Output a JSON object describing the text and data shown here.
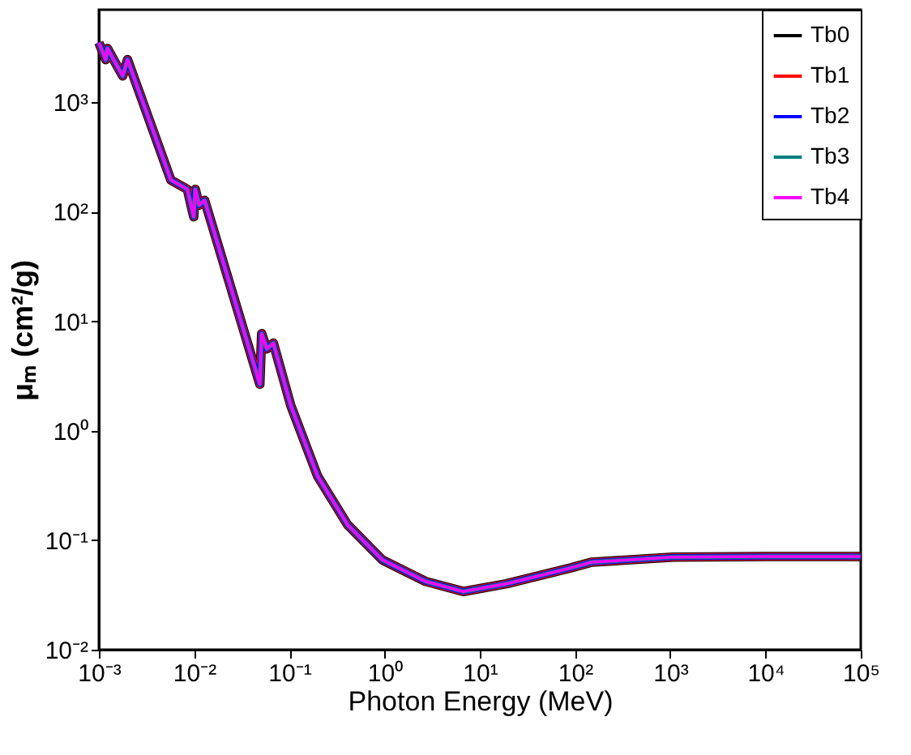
{
  "chart_data": {
    "type": "line",
    "xlabel": "Photon Energy (MeV)",
    "ylabel": "μₘ (cm²/g)",
    "log": "xy",
    "grid": false,
    "legend": "top right",
    "line_style": "solid",
    "marker": "none",
    "x": [
      0.001,
      0.00118,
      0.00123,
      0.00178,
      0.002,
      0.0057,
      0.0085,
      0.0099,
      0.0103,
      0.0113,
      0.0129,
      0.049,
      0.0512,
      0.058,
      0.068,
      0.1035,
      0.198,
      0.41,
      0.95,
      2.7,
      6.7,
      19,
      91,
      150,
      1070,
      10000,
      100000
    ],
    "xlim": [
      0.001,
      100000
    ],
    "xticks": [
      {
        "value": 0.001,
        "label": "10⁻³"
      },
      {
        "value": 0.01,
        "label": "10⁻²"
      },
      {
        "value": 0.1,
        "label": "10⁻¹"
      },
      {
        "value": 1,
        "label": "10⁰"
      },
      {
        "value": 10,
        "label": "10¹"
      },
      {
        "value": 100,
        "label": "10²"
      },
      {
        "value": 1000,
        "label": "10³"
      },
      {
        "value": 10000,
        "label": "10⁴"
      },
      {
        "value": 100000,
        "label": "10⁵"
      }
    ],
    "ylim": [
      0.01,
      7000
    ],
    "yticks": [
      {
        "value": 0.01,
        "label": "10⁻²"
      },
      {
        "value": 0.1,
        "label": "10⁻¹"
      },
      {
        "value": 1,
        "label": "10⁰"
      },
      {
        "value": 10,
        "label": "10¹"
      },
      {
        "value": 100,
        "label": "10²"
      },
      {
        "value": 1000,
        "label": "10³"
      }
    ],
    "series": [
      {
        "name": "Tb0",
        "color": "#000000",
        "values": [
          3500,
          2450,
          3100,
          1740,
          2450,
          195,
          160,
          90,
          160,
          115,
          127,
          2.66,
          7.7,
          5.6,
          6.3,
          1.7,
          0.385,
          0.138,
          0.066,
          0.042,
          0.034,
          0.04,
          0.056,
          0.063,
          0.07,
          0.071,
          0.071
        ]
      },
      {
        "name": "Tb1",
        "color": "#ff0000",
        "values": [
          3500,
          2450,
          3100,
          1740,
          2450,
          195,
          160,
          90,
          160,
          115,
          127,
          2.66,
          7.7,
          5.6,
          6.3,
          1.7,
          0.385,
          0.138,
          0.066,
          0.042,
          0.034,
          0.04,
          0.056,
          0.063,
          0.07,
          0.071,
          0.071
        ]
      },
      {
        "name": "Tb2",
        "color": "#0000ff",
        "values": [
          3500,
          2450,
          3100,
          1740,
          2450,
          195,
          160,
          90,
          160,
          115,
          127,
          2.66,
          7.7,
          5.6,
          6.3,
          1.7,
          0.385,
          0.138,
          0.066,
          0.042,
          0.034,
          0.04,
          0.056,
          0.063,
          0.07,
          0.071,
          0.071
        ]
      },
      {
        "name": "Tb3",
        "color": "#008080",
        "values": [
          3500,
          2450,
          3100,
          1740,
          2450,
          195,
          160,
          90,
          160,
          115,
          127,
          2.66,
          7.7,
          5.6,
          6.3,
          1.7,
          0.385,
          0.138,
          0.066,
          0.042,
          0.034,
          0.04,
          0.056,
          0.063,
          0.07,
          0.071,
          0.071
        ]
      },
      {
        "name": "Tb4",
        "color": "#ff00ff",
        "values": [
          3500,
          2450,
          3100,
          1740,
          2450,
          195,
          160,
          90,
          160,
          115,
          127,
          2.66,
          7.7,
          5.6,
          6.3,
          1.7,
          0.385,
          0.138,
          0.066,
          0.042,
          0.034,
          0.04,
          0.056,
          0.063,
          0.07,
          0.071,
          0.071
        ]
      }
    ]
  }
}
